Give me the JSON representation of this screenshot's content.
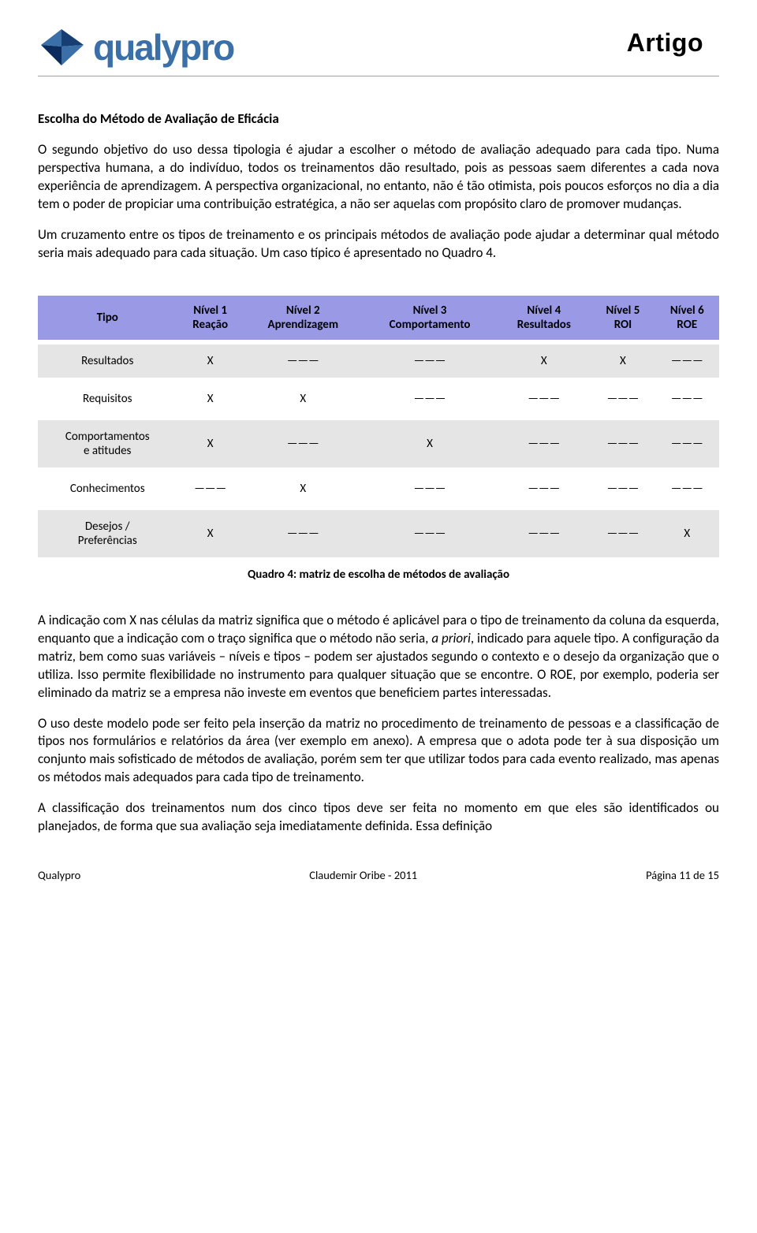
{
  "header": {
    "logo_text": "qualypro",
    "title": "Artigo",
    "logo_colors": {
      "edge": "#0a2b5c",
      "fill_light": "#3a6fa8",
      "fill_dark": "#163e73"
    },
    "logo_text_color": "#3a6fa8",
    "rule_color": "#a0a0a0"
  },
  "section": {
    "heading": "Escolha do Método de Avaliação de Eficácia",
    "p1": "O segundo objetivo do uso dessa tipologia é ajudar a escolher o método de avaliação adequado para cada tipo. Numa perspectiva humana, a do indivíduo, todos os treinamentos dão resultado, pois as pessoas saem diferentes a cada nova experiência de aprendizagem. A perspectiva organizacional, no entanto, não é tão otimista, pois poucos esforços no dia a dia tem o poder de propiciar uma contribuição estratégica, a não ser aquelas com propósito claro de promover mudanças.",
    "p2": "Um cruzamento entre os tipos de treinamento e os principais métodos de avaliação pode ajudar a determinar qual método seria mais adequado para cada situação. Um caso típico é apresentado no Quadro 4."
  },
  "matrix": {
    "header_bg": "#9999e6",
    "row_odd_bg": "#e5e5e5",
    "row_even_bg": "#ffffff",
    "dash_char": "———",
    "columns": [
      {
        "line1": "Tipo",
        "line2": ""
      },
      {
        "line1": "Nível 1",
        "line2": "Reação"
      },
      {
        "line1": "Nível 2",
        "line2": "Aprendizagem"
      },
      {
        "line1": "Nível 3",
        "line2": "Comportamento"
      },
      {
        "line1": "Nível 4",
        "line2": "Resultados"
      },
      {
        "line1": "Nível 5",
        "line2": "ROI"
      },
      {
        "line1": "Nível 6",
        "line2": "ROE"
      }
    ],
    "rows": [
      {
        "label": "Resultados",
        "cells": [
          "X",
          "———",
          "———",
          "X",
          "X",
          "———"
        ]
      },
      {
        "label": "Requisitos",
        "cells": [
          "X",
          "X",
          "———",
          "———",
          "———",
          "———"
        ]
      },
      {
        "label": "Comportamentos e atitudes",
        "cells": [
          "X",
          "———",
          "X",
          "———",
          "———",
          "———"
        ]
      },
      {
        "label": "Conhecimentos",
        "cells": [
          "———",
          "X",
          "———",
          "———",
          "———",
          "———"
        ]
      },
      {
        "label": "Desejos / Preferências",
        "cells": [
          "X",
          "———",
          "———",
          "———",
          "———",
          "X"
        ]
      }
    ],
    "caption": "Quadro 4: matriz de escolha de métodos de avaliação"
  },
  "body2": {
    "p3_pre": "A indicação com X nas células da matriz significa que o método é aplicável para o tipo de treinamento da coluna da esquerda, enquanto que a indicação com o traço significa que o método não seria, ",
    "p3_italic": "a priori",
    "p3_post": ", indicado para aquele tipo. A configuração da matriz, bem como suas variáveis – níveis e tipos – podem ser ajustados segundo o contexto e o desejo da organização que o utiliza. Isso permite flexibilidade no instrumento para qualquer situação que se encontre. O ROE, por exemplo, poderia ser eliminado da matriz se a empresa não investe em eventos que beneficiem partes interessadas.",
    "p4": "O uso deste modelo pode ser feito pela inserção da matriz no procedimento de treinamento de pessoas e a classificação de tipos nos formulários e relatórios da área (ver exemplo em anexo). A empresa que o adota pode ter à sua disposição um conjunto mais sofisticado de métodos de avaliação, porém sem ter que utilizar todos para cada evento realizado, mas apenas os métodos mais adequados para cada tipo de treinamento.",
    "p5": "A classificação dos treinamentos num dos cinco tipos deve ser feita no momento em que eles são identificados ou planejados, de forma que sua avaliação seja imediatamente definida. Essa definição"
  },
  "footer": {
    "left": "Qualypro",
    "center": "Claudemir Oribe - 2011",
    "right": "Página 11 de 15"
  },
  "typography": {
    "body_font": "Calibri",
    "body_size_pt": 12,
    "heading_weight": 700,
    "header_title_font": "Arial Black",
    "header_title_size_pt": 24
  }
}
